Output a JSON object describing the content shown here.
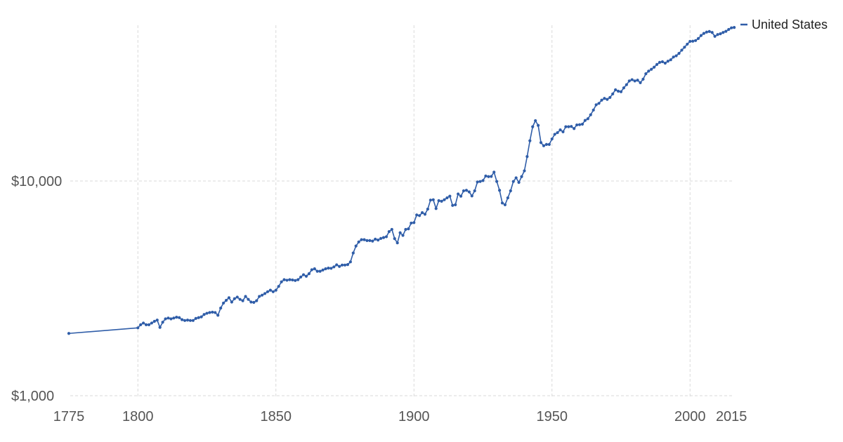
{
  "chart_data": {
    "type": "line",
    "title": "",
    "xlabel": "",
    "ylabel": "",
    "y_scale": "log",
    "ylim": [
      1000,
      50000
    ],
    "xlim": [
      1775,
      2016
    ],
    "grid": true,
    "legend_position": "top-right",
    "x_ticks": [
      1775,
      1800,
      1850,
      1900,
      1950,
      2000,
      2015
    ],
    "x_gridlines": [
      1800,
      1850,
      1900,
      1950,
      2000
    ],
    "y_ticks": [
      {
        "value": 1000,
        "label": "$1,000"
      },
      {
        "value": 10000,
        "label": "$10,000"
      }
    ],
    "series": [
      {
        "name": "United States",
        "color": "#2f5da8",
        "points": [
          [
            1775,
            1950
          ],
          [
            1800,
            2070
          ],
          [
            1801,
            2140
          ],
          [
            1802,
            2180
          ],
          [
            1803,
            2140
          ],
          [
            1804,
            2140
          ],
          [
            1805,
            2180
          ],
          [
            1806,
            2220
          ],
          [
            1807,
            2250
          ],
          [
            1808,
            2080
          ],
          [
            1809,
            2200
          ],
          [
            1810,
            2280
          ],
          [
            1811,
            2300
          ],
          [
            1812,
            2280
          ],
          [
            1813,
            2300
          ],
          [
            1814,
            2320
          ],
          [
            1815,
            2310
          ],
          [
            1816,
            2260
          ],
          [
            1817,
            2240
          ],
          [
            1818,
            2250
          ],
          [
            1819,
            2240
          ],
          [
            1820,
            2240
          ],
          [
            1821,
            2290
          ],
          [
            1822,
            2310
          ],
          [
            1823,
            2330
          ],
          [
            1824,
            2390
          ],
          [
            1825,
            2420
          ],
          [
            1826,
            2440
          ],
          [
            1827,
            2450
          ],
          [
            1828,
            2440
          ],
          [
            1829,
            2370
          ],
          [
            1830,
            2560
          ],
          [
            1831,
            2700
          ],
          [
            1832,
            2780
          ],
          [
            1833,
            2860
          ],
          [
            1834,
            2730
          ],
          [
            1835,
            2830
          ],
          [
            1836,
            2880
          ],
          [
            1837,
            2810
          ],
          [
            1838,
            2770
          ],
          [
            1839,
            2900
          ],
          [
            1840,
            2810
          ],
          [
            1841,
            2730
          ],
          [
            1842,
            2720
          ],
          [
            1843,
            2770
          ],
          [
            1844,
            2900
          ],
          [
            1845,
            2940
          ],
          [
            1846,
            2990
          ],
          [
            1847,
            3050
          ],
          [
            1848,
            3100
          ],
          [
            1849,
            3050
          ],
          [
            1850,
            3100
          ],
          [
            1851,
            3230
          ],
          [
            1852,
            3390
          ],
          [
            1853,
            3470
          ],
          [
            1854,
            3450
          ],
          [
            1855,
            3470
          ],
          [
            1856,
            3460
          ],
          [
            1857,
            3440
          ],
          [
            1858,
            3470
          ],
          [
            1859,
            3570
          ],
          [
            1860,
            3660
          ],
          [
            1861,
            3600
          ],
          [
            1862,
            3700
          ],
          [
            1863,
            3860
          ],
          [
            1864,
            3900
          ],
          [
            1865,
            3800
          ],
          [
            1866,
            3800
          ],
          [
            1867,
            3850
          ],
          [
            1868,
            3900
          ],
          [
            1869,
            3930
          ],
          [
            1870,
            3920
          ],
          [
            1871,
            3980
          ],
          [
            1872,
            4070
          ],
          [
            1873,
            4000
          ],
          [
            1874,
            4060
          ],
          [
            1875,
            4060
          ],
          [
            1876,
            4080
          ],
          [
            1877,
            4200
          ],
          [
            1878,
            4620
          ],
          [
            1879,
            4980
          ],
          [
            1880,
            5200
          ],
          [
            1881,
            5330
          ],
          [
            1882,
            5330
          ],
          [
            1883,
            5280
          ],
          [
            1884,
            5280
          ],
          [
            1885,
            5250
          ],
          [
            1886,
            5360
          ],
          [
            1887,
            5310
          ],
          [
            1888,
            5400
          ],
          [
            1889,
            5450
          ],
          [
            1890,
            5500
          ],
          [
            1891,
            5810
          ],
          [
            1892,
            5950
          ],
          [
            1893,
            5390
          ],
          [
            1894,
            5150
          ],
          [
            1895,
            5740
          ],
          [
            1896,
            5580
          ],
          [
            1897,
            5950
          ],
          [
            1898,
            5990
          ],
          [
            1899,
            6370
          ],
          [
            1900,
            6400
          ],
          [
            1901,
            6950
          ],
          [
            1902,
            6900
          ],
          [
            1903,
            7120
          ],
          [
            1904,
            7000
          ],
          [
            1905,
            7400
          ],
          [
            1906,
            8150
          ],
          [
            1907,
            8180
          ],
          [
            1908,
            7440
          ],
          [
            1909,
            8100
          ],
          [
            1910,
            8050
          ],
          [
            1911,
            8180
          ],
          [
            1912,
            8350
          ],
          [
            1913,
            8500
          ],
          [
            1914,
            7700
          ],
          [
            1915,
            7750
          ],
          [
            1916,
            8700
          ],
          [
            1917,
            8500
          ],
          [
            1918,
            9000
          ],
          [
            1919,
            9050
          ],
          [
            1920,
            8900
          ],
          [
            1921,
            8520
          ],
          [
            1922,
            9000
          ],
          [
            1923,
            9900
          ],
          [
            1924,
            9950
          ],
          [
            1925,
            10050
          ],
          [
            1926,
            10550
          ],
          [
            1927,
            10480
          ],
          [
            1928,
            10500
          ],
          [
            1929,
            11000
          ],
          [
            1930,
            9950
          ],
          [
            1931,
            9050
          ],
          [
            1932,
            7900
          ],
          [
            1933,
            7750
          ],
          [
            1934,
            8350
          ],
          [
            1935,
            9000
          ],
          [
            1936,
            9950
          ],
          [
            1937,
            10350
          ],
          [
            1938,
            9850
          ],
          [
            1939,
            10480
          ],
          [
            1940,
            11150
          ],
          [
            1941,
            13000
          ],
          [
            1942,
            15400
          ],
          [
            1943,
            17900
          ],
          [
            1944,
            19100
          ],
          [
            1945,
            18150
          ],
          [
            1946,
            15100
          ],
          [
            1947,
            14600
          ],
          [
            1948,
            14800
          ],
          [
            1949,
            14800
          ],
          [
            1950,
            15700
          ],
          [
            1951,
            16500
          ],
          [
            1952,
            16800
          ],
          [
            1953,
            17300
          ],
          [
            1954,
            16950
          ],
          [
            1955,
            17900
          ],
          [
            1956,
            17900
          ],
          [
            1957,
            17950
          ],
          [
            1958,
            17550
          ],
          [
            1959,
            18250
          ],
          [
            1960,
            18300
          ],
          [
            1961,
            18400
          ],
          [
            1962,
            19150
          ],
          [
            1963,
            19500
          ],
          [
            1964,
            20350
          ],
          [
            1965,
            21400
          ],
          [
            1966,
            22650
          ],
          [
            1967,
            23000
          ],
          [
            1968,
            23800
          ],
          [
            1969,
            24250
          ],
          [
            1970,
            24000
          ],
          [
            1971,
            24500
          ],
          [
            1972,
            25450
          ],
          [
            1973,
            26600
          ],
          [
            1974,
            26200
          ],
          [
            1975,
            26050
          ],
          [
            1976,
            27150
          ],
          [
            1977,
            28100
          ],
          [
            1978,
            29250
          ],
          [
            1979,
            29650
          ],
          [
            1980,
            29250
          ],
          [
            1981,
            29500
          ],
          [
            1982,
            28700
          ],
          [
            1983,
            29800
          ],
          [
            1984,
            31600
          ],
          [
            1985,
            32500
          ],
          [
            1986,
            33150
          ],
          [
            1987,
            33900
          ],
          [
            1988,
            34900
          ],
          [
            1989,
            35700
          ],
          [
            1990,
            35950
          ],
          [
            1991,
            35400
          ],
          [
            1992,
            36150
          ],
          [
            1993,
            36700
          ],
          [
            1994,
            37800
          ],
          [
            1995,
            38300
          ],
          [
            1996,
            39300
          ],
          [
            1997,
            40700
          ],
          [
            1998,
            42000
          ],
          [
            1999,
            43400
          ],
          [
            2000,
            44700
          ],
          [
            2001,
            44800
          ],
          [
            2002,
            45100
          ],
          [
            2003,
            46100
          ],
          [
            2004,
            47600
          ],
          [
            2005,
            48700
          ],
          [
            2006,
            49400
          ],
          [
            2007,
            49700
          ],
          [
            2008,
            49200
          ],
          [
            2009,
            47200
          ],
          [
            2010,
            48100
          ],
          [
            2011,
            48500
          ],
          [
            2012,
            49200
          ],
          [
            2013,
            49800
          ],
          [
            2014,
            50800
          ],
          [
            2015,
            51700
          ],
          [
            2016,
            51900
          ]
        ]
      }
    ]
  }
}
